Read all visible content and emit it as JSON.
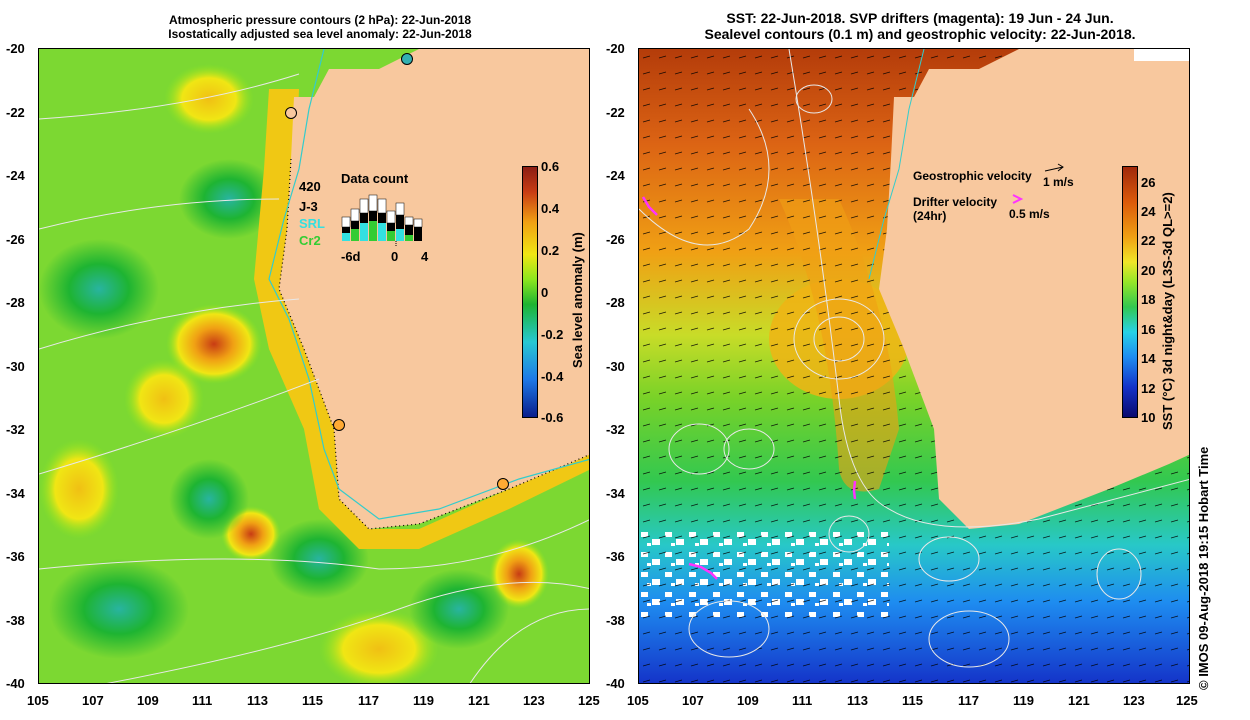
{
  "left_panel": {
    "title_line1": "Atmospheric pressure contours (2 hPa): 22-Jun-2018",
    "title_line2": "Isostatically adjusted sea level anomaly: 22-Jun-2018",
    "colorbar": {
      "label": "Sea level anomaly (m)",
      "ticks": [
        "0.6",
        "0.4",
        "0.2",
        "0",
        "-0.2",
        "-0.4",
        "-0.6"
      ],
      "range": [
        -0.6,
        0.6
      ],
      "colors": [
        "#0a1e8c",
        "#1e78e6",
        "#28c8d2",
        "#1eb432",
        "#8ce61e",
        "#f0e614",
        "#f0a014",
        "#c83c14",
        "#8c1e14"
      ]
    },
    "data_count": {
      "title": "Data count",
      "max": "420",
      "legend": [
        {
          "label": "J-3",
          "color": "#000000"
        },
        {
          "label": "SRL",
          "color": "#33e0e0"
        },
        {
          "label": "Cr2",
          "color": "#33cc33"
        }
      ],
      "axis_labels": [
        "-6d",
        "0",
        "4"
      ]
    }
  },
  "right_panel": {
    "title_line1": "SST: 22-Jun-2018. SVP drifters (magenta): 19 Jun - 24 Jun.",
    "title_line2": "Sealevel contours (0.1 m) and geostrophic velocity: 22-Jun-2018.",
    "colorbar": {
      "label": "SST (°C) 3d night&day (L3S-3d QL>=2)",
      "ticks": [
        "26",
        "24",
        "22",
        "20",
        "18",
        "16",
        "14",
        "12",
        "10"
      ],
      "range": [
        10,
        27
      ],
      "colors": [
        "#0a0a6e",
        "#1432c8",
        "#1e8cf0",
        "#28d2e6",
        "#32c850",
        "#96e628",
        "#f0e628",
        "#f0a014",
        "#dc5a0a",
        "#a0280a"
      ]
    },
    "legend": {
      "geo_label": "Geostrophic velocity",
      "geo_scale": "1 m/s",
      "drifter_label_1": "Drifter velocity",
      "drifter_label_2": "(24hr)",
      "drifter_scale": "0.5 m/s"
    }
  },
  "axes": {
    "y_ticks": [
      "-20",
      "-22",
      "-24",
      "-26",
      "-28",
      "-30",
      "-32",
      "-34",
      "-36",
      "-38",
      "-40"
    ],
    "x_ticks": [
      "105",
      "107",
      "109",
      "111",
      "113",
      "115",
      "117",
      "119",
      "121",
      "123",
      "125"
    ]
  },
  "credit": "© IMOS 09-Aug-2018 19:15 Hobart Time",
  "colors": {
    "land": "#f8c89e",
    "magenta": "#ff33ff",
    "contour": "#e8e8e8",
    "station_fill": "#ffaa33",
    "coast_cyan": "#33cccc"
  }
}
